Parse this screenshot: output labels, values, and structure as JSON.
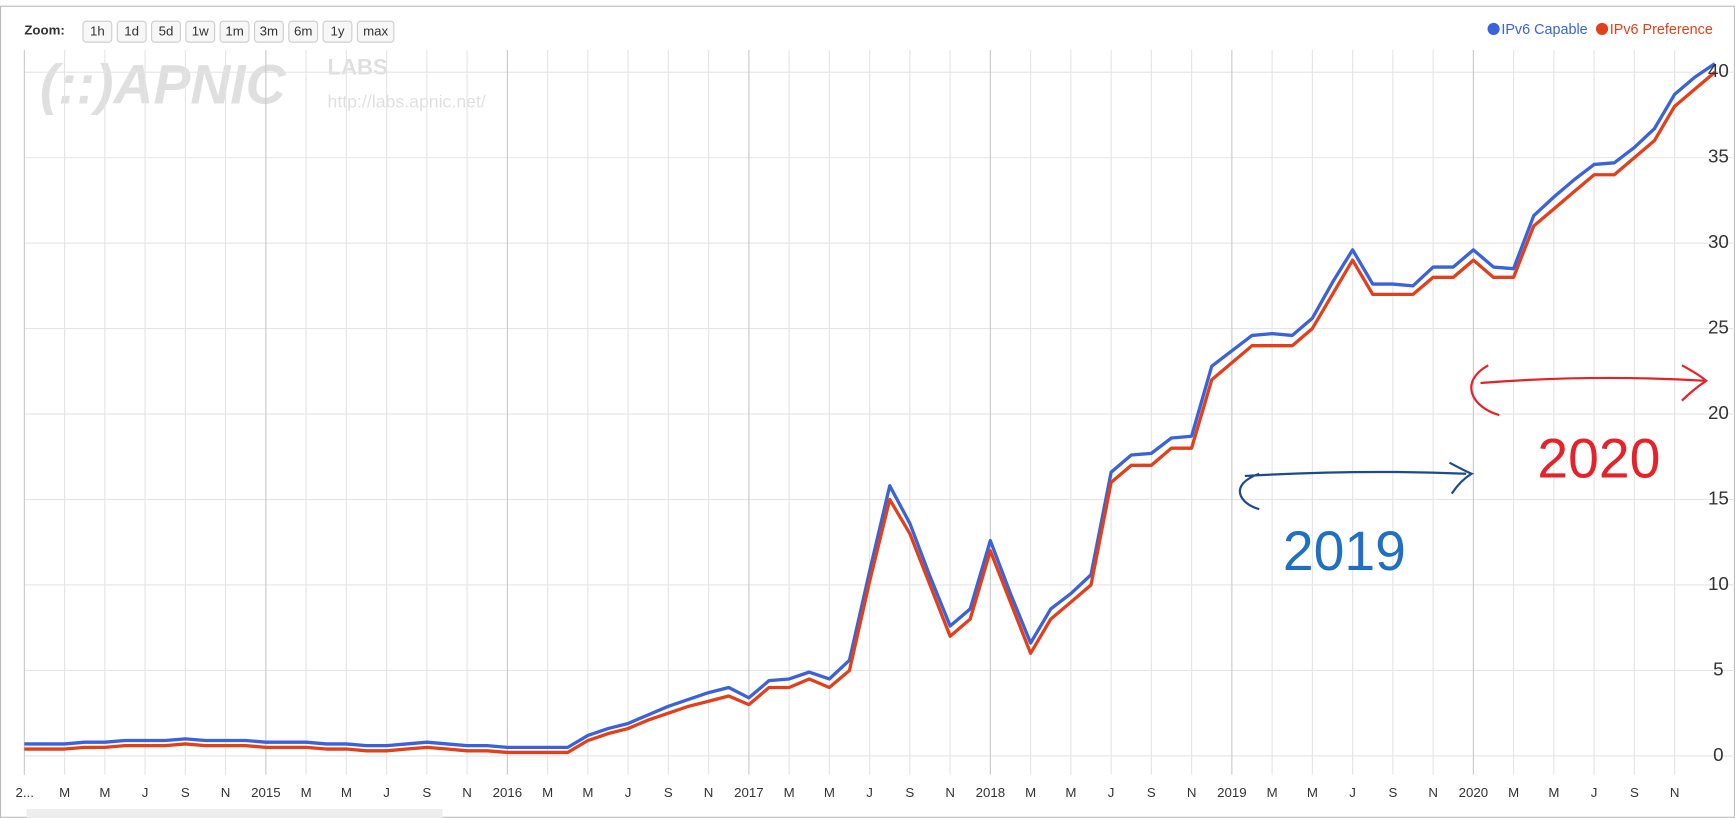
{
  "chart_data": {
    "type": "line",
    "zoom": {
      "label": "Zoom:",
      "buttons": [
        "1h",
        "1d",
        "5d",
        "1w",
        "1m",
        "3m",
        "6m",
        "1y",
        "max"
      ]
    },
    "watermark": {
      "logo": "(::)APNIC",
      "labs": "LABS",
      "url": "http://labs.apnic.net/"
    },
    "legend": "top-right",
    "grid": true,
    "x": [
      "2014-01",
      "2014-02",
      "2014-03",
      "2014-04",
      "2014-05",
      "2014-06",
      "2014-07",
      "2014-08",
      "2014-09",
      "2014-10",
      "2014-11",
      "2014-12",
      "2015-01",
      "2015-02",
      "2015-03",
      "2015-04",
      "2015-05",
      "2015-06",
      "2015-07",
      "2015-08",
      "2015-09",
      "2015-10",
      "2015-11",
      "2015-12",
      "2016-01",
      "2016-02",
      "2016-03",
      "2016-04",
      "2016-05",
      "2016-06",
      "2016-07",
      "2016-08",
      "2016-09",
      "2016-10",
      "2016-11",
      "2016-12",
      "2017-01",
      "2017-02",
      "2017-03",
      "2017-04",
      "2017-05",
      "2017-06",
      "2017-07",
      "2017-08",
      "2017-09",
      "2017-10",
      "2017-11",
      "2017-12",
      "2018-01",
      "2018-02",
      "2018-03",
      "2018-04",
      "2018-05",
      "2018-06",
      "2018-07",
      "2018-08",
      "2018-09",
      "2018-10",
      "2018-11",
      "2018-12",
      "2019-01",
      "2019-02",
      "2019-03",
      "2019-04",
      "2019-05",
      "2019-06",
      "2019-07",
      "2019-08",
      "2019-09",
      "2019-10",
      "2019-11",
      "2019-12",
      "2020-01",
      "2020-02",
      "2020-03",
      "2020-04",
      "2020-05",
      "2020-06",
      "2020-07",
      "2020-08",
      "2020-09",
      "2020-10",
      "2020-11",
      "2020-12",
      "2021-01"
    ],
    "series": [
      {
        "name": "IPv6 Capable",
        "color": "#3a62d9",
        "values": [
          0.7,
          0.7,
          0.7,
          0.8,
          0.8,
          0.9,
          0.9,
          0.9,
          1.0,
          0.9,
          0.9,
          0.9,
          0.8,
          0.8,
          0.8,
          0.7,
          0.7,
          0.6,
          0.6,
          0.7,
          0.8,
          0.7,
          0.6,
          0.6,
          0.5,
          0.5,
          0.5,
          0.5,
          1.2,
          1.6,
          1.9,
          2.4,
          2.9,
          3.3,
          3.7,
          4.0,
          3.4,
          4.4,
          4.5,
          4.9,
          4.5,
          5.6,
          10.8,
          15.8,
          13.6,
          10.5,
          7.6,
          8.6,
          12.6,
          9.5,
          6.6,
          8.6,
          9.5,
          10.6,
          16.6,
          17.6,
          17.7,
          18.6,
          18.7,
          22.8,
          23.7,
          24.6,
          24.7,
          24.6,
          25.6,
          27.7,
          29.6,
          27.6,
          27.6,
          27.5,
          28.6,
          28.6,
          29.6,
          28.6,
          28.5,
          31.6,
          32.7,
          33.7,
          34.6,
          34.7,
          35.6,
          36.7,
          38.7,
          39.7,
          40.5
        ]
      },
      {
        "name": "IPv6 Preference",
        "color": "#e2401b",
        "values": [
          0.4,
          0.4,
          0.4,
          0.5,
          0.5,
          0.6,
          0.6,
          0.6,
          0.7,
          0.6,
          0.6,
          0.6,
          0.5,
          0.5,
          0.5,
          0.4,
          0.4,
          0.3,
          0.3,
          0.4,
          0.5,
          0.4,
          0.3,
          0.3,
          0.2,
          0.2,
          0.2,
          0.2,
          0.9,
          1.3,
          1.6,
          2.1,
          2.5,
          2.9,
          3.2,
          3.5,
          3.0,
          4.0,
          4.0,
          4.5,
          4.0,
          5.0,
          10.2,
          15.0,
          13.0,
          10.0,
          7.0,
          8.0,
          12.0,
          9.0,
          6.0,
          8.0,
          9.0,
          10.0,
          16.0,
          17.0,
          17.0,
          18.0,
          18.0,
          22.0,
          23.0,
          24.0,
          24.0,
          24.0,
          25.0,
          27.0,
          29.0,
          27.0,
          27.0,
          27.0,
          28.0,
          28.0,
          29.0,
          28.0,
          28.0,
          31.0,
          32.0,
          33.0,
          34.0,
          34.0,
          35.0,
          36.0,
          38.0,
          39.0,
          40.0
        ]
      }
    ],
    "xlim": [
      "2014-01",
      "2021-02"
    ],
    "xticks": [
      {
        "value": "2014-01",
        "label": "2..."
      },
      {
        "value": "2014-03",
        "label": "M"
      },
      {
        "value": "2014-05",
        "label": "M"
      },
      {
        "value": "2014-07",
        "label": "J"
      },
      {
        "value": "2014-09",
        "label": "S"
      },
      {
        "value": "2014-11",
        "label": "N"
      },
      {
        "value": "2015-01",
        "label": "2015"
      },
      {
        "value": "2015-03",
        "label": "M"
      },
      {
        "value": "2015-05",
        "label": "M"
      },
      {
        "value": "2015-07",
        "label": "J"
      },
      {
        "value": "2015-09",
        "label": "S"
      },
      {
        "value": "2015-11",
        "label": "N"
      },
      {
        "value": "2016-01",
        "label": "2016"
      },
      {
        "value": "2016-03",
        "label": "M"
      },
      {
        "value": "2016-05",
        "label": "M"
      },
      {
        "value": "2016-07",
        "label": "J"
      },
      {
        "value": "2016-09",
        "label": "S"
      },
      {
        "value": "2016-11",
        "label": "N"
      },
      {
        "value": "2017-01",
        "label": "2017"
      },
      {
        "value": "2017-03",
        "label": "M"
      },
      {
        "value": "2017-05",
        "label": "M"
      },
      {
        "value": "2017-07",
        "label": "J"
      },
      {
        "value": "2017-09",
        "label": "S"
      },
      {
        "value": "2017-11",
        "label": "N"
      },
      {
        "value": "2018-01",
        "label": "2018"
      },
      {
        "value": "2018-03",
        "label": "M"
      },
      {
        "value": "2018-05",
        "label": "M"
      },
      {
        "value": "2018-07",
        "label": "J"
      },
      {
        "value": "2018-09",
        "label": "S"
      },
      {
        "value": "2018-11",
        "label": "N"
      },
      {
        "value": "2019-01",
        "label": "2019"
      },
      {
        "value": "2019-03",
        "label": "M"
      },
      {
        "value": "2019-05",
        "label": "M"
      },
      {
        "value": "2019-07",
        "label": "J"
      },
      {
        "value": "2019-09",
        "label": "S"
      },
      {
        "value": "2019-11",
        "label": "N"
      },
      {
        "value": "2020-01",
        "label": "2020"
      },
      {
        "value": "2020-03",
        "label": "M"
      },
      {
        "value": "2020-05",
        "label": "M"
      },
      {
        "value": "2020-07",
        "label": "J"
      },
      {
        "value": "2020-09",
        "label": "S"
      },
      {
        "value": "2020-11",
        "label": "N"
      }
    ],
    "ylim": [
      -1.1,
      41.3
    ],
    "yticks": [
      0,
      5,
      10,
      15,
      20,
      25,
      30,
      35,
      40
    ],
    "annotations": [
      {
        "text": "2019",
        "color": "#1f6fc2"
      },
      {
        "text": "2020",
        "color": "#e62129"
      }
    ]
  }
}
